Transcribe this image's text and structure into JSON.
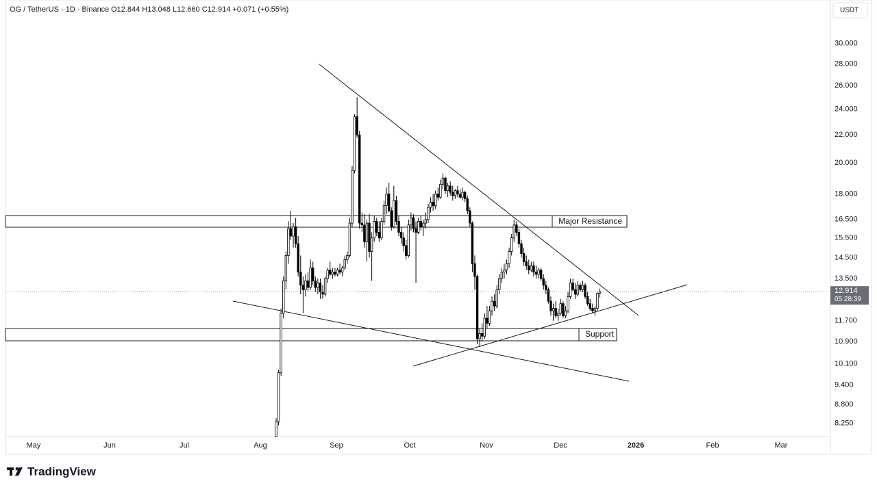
{
  "header": {
    "symbol": "OG / TetherUS · 1D · Binance",
    "ohlc": "O12.844 H13.048 L12.660 C12.914 +0.071 (+0.55%)"
  },
  "brand": "TradingView",
  "chart_data": {
    "type": "candlestick",
    "currency": "USDT",
    "log_scale": true,
    "grid": false,
    "up_color": "#ffffff",
    "down_color": "#000000",
    "wick_color": "#000000",
    "ylim": [
      7.89,
      34.8
    ],
    "yticks": [
      {
        "value": 30,
        "label": "30.000"
      },
      {
        "value": 28,
        "label": "28.000"
      },
      {
        "value": 26,
        "label": "26.000"
      },
      {
        "value": 24,
        "label": "24.000"
      },
      {
        "value": 22,
        "label": "22.000"
      },
      {
        "value": 20,
        "label": "20.000"
      },
      {
        "value": 18,
        "label": "18.000"
      },
      {
        "value": 16.5,
        "label": "16.500"
      },
      {
        "value": 15.5,
        "label": "15.500"
      },
      {
        "value": 14.5,
        "label": "14.500"
      },
      {
        "value": 13.5,
        "label": "13.500"
      },
      {
        "value": 11.7,
        "label": "11.700"
      },
      {
        "value": 10.9,
        "label": "10.900"
      },
      {
        "value": 10.1,
        "label": "10.100"
      },
      {
        "value": 9.4,
        "label": "9.400"
      },
      {
        "value": 8.8,
        "label": "8.800"
      },
      {
        "value": 8.25,
        "label": "8.250"
      }
    ],
    "months": [
      "May",
      "Jun",
      "Jul",
      "Aug",
      "Sep",
      "Oct",
      "Nov",
      "Dec",
      "2026",
      "Feb",
      "Mar"
    ],
    "last_price": {
      "label": "12.914",
      "countdown": "05:28:39"
    },
    "annotations": {
      "resistance": "Major Resistance",
      "support": "Support"
    },
    "candles": [
      [
        7.9,
        8.4,
        7.9,
        8.3
      ],
      [
        8.3,
        9.9,
        8.2,
        9.8
      ],
      [
        9.8,
        12.2,
        9.7,
        12.0
      ],
      [
        12.0,
        13.6,
        11.8,
        13.4
      ],
      [
        13.4,
        14.8,
        13.0,
        14.6
      ],
      [
        14.6,
        16.4,
        14.2,
        16.0
      ],
      [
        16.0,
        17.0,
        15.4,
        15.6
      ],
      [
        15.6,
        16.3,
        15.0,
        16.1
      ],
      [
        16.1,
        16.6,
        15.0,
        15.2
      ],
      [
        15.2,
        15.6,
        13.6,
        13.8
      ],
      [
        13.8,
        14.6,
        12.8,
        13.2
      ],
      [
        13.2,
        13.6,
        12.0,
        13.0
      ],
      [
        13.0,
        13.7,
        12.7,
        13.4
      ],
      [
        13.4,
        13.8,
        12.9,
        13.1
      ],
      [
        13.1,
        14.4,
        13.0,
        14.0
      ],
      [
        14.0,
        14.3,
        13.2,
        13.4
      ],
      [
        13.4,
        13.6,
        12.9,
        13.1
      ],
      [
        13.1,
        13.5,
        12.8,
        13.3
      ],
      [
        13.3,
        13.5,
        12.6,
        12.9
      ],
      [
        12.9,
        13.2,
        12.6,
        12.8
      ],
      [
        12.8,
        13.6,
        12.7,
        13.5
      ],
      [
        13.5,
        14.0,
        13.3,
        13.9
      ],
      [
        13.9,
        14.3,
        13.6,
        13.7
      ],
      [
        13.7,
        14.0,
        13.5,
        13.8
      ],
      [
        13.8,
        14.0,
        13.6,
        13.7
      ],
      [
        13.7,
        14.0,
        13.6,
        13.9
      ],
      [
        13.9,
        14.2,
        13.7,
        13.8
      ],
      [
        13.8,
        14.1,
        13.6,
        14.0
      ],
      [
        14.0,
        14.6,
        13.9,
        14.4
      ],
      [
        14.4,
        14.8,
        14.2,
        14.6
      ],
      [
        14.6,
        16.6,
        14.5,
        16.3
      ],
      [
        16.3,
        19.8,
        16.1,
        19.5
      ],
      [
        19.5,
        23.6,
        19.3,
        23.4
      ],
      [
        23.4,
        25.0,
        21.8,
        22.0
      ],
      [
        22.0,
        22.3,
        16.0,
        16.3
      ],
      [
        16.3,
        16.9,
        15.8,
        16.2
      ],
      [
        16.2,
        16.8,
        15.0,
        15.3
      ],
      [
        15.3,
        16.5,
        14.3,
        16.3
      ],
      [
        16.3,
        16.8,
        14.5,
        14.8
      ],
      [
        14.8,
        15.8,
        13.4,
        15.5
      ],
      [
        15.5,
        16.7,
        15.3,
        16.4
      ],
      [
        16.4,
        16.6,
        15.6,
        15.8
      ],
      [
        15.8,
        16.4,
        15.3,
        15.5
      ],
      [
        15.5,
        16.6,
        15.4,
        16.4
      ],
      [
        16.4,
        17.6,
        16.2,
        17.3
      ],
      [
        17.3,
        18.4,
        16.8,
        18.0
      ],
      [
        18.0,
        18.7,
        16.9,
        17.0
      ],
      [
        17.0,
        17.2,
        15.9,
        16.1
      ],
      [
        16.1,
        18.5,
        16.0,
        17.6
      ],
      [
        17.6,
        17.9,
        16.2,
        16.4
      ],
      [
        16.4,
        16.7,
        15.6,
        15.8
      ],
      [
        15.8,
        16.1,
        15.2,
        15.5
      ],
      [
        15.5,
        15.8,
        14.8,
        15.1
      ],
      [
        15.1,
        15.4,
        14.4,
        14.6
      ],
      [
        14.6,
        16.5,
        14.5,
        16.2
      ],
      [
        16.2,
        16.9,
        15.9,
        16.6
      ],
      [
        16.6,
        16.8,
        15.8,
        16.0
      ],
      [
        16.0,
        16.4,
        13.3,
        15.8
      ],
      [
        15.8,
        16.6,
        15.7,
        16.4
      ],
      [
        16.4,
        16.7,
        15.9,
        16.1
      ],
      [
        16.1,
        16.5,
        15.6,
        16.3
      ],
      [
        16.3,
        16.9,
        16.0,
        16.5
      ],
      [
        16.5,
        17.4,
        16.3,
        17.2
      ],
      [
        17.2,
        17.8,
        16.9,
        17.5
      ],
      [
        17.5,
        18.0,
        17.0,
        17.3
      ],
      [
        17.3,
        18.2,
        17.1,
        18.0
      ],
      [
        18.0,
        18.4,
        17.6,
        17.8
      ],
      [
        17.8,
        18.9,
        17.7,
        18.6
      ],
      [
        18.6,
        19.3,
        18.3,
        19.0
      ],
      [
        19.0,
        19.1,
        18.0,
        18.2
      ],
      [
        18.2,
        18.7,
        17.8,
        18.5
      ],
      [
        18.5,
        18.8,
        17.9,
        18.1
      ],
      [
        18.1,
        18.5,
        17.6,
        17.9
      ],
      [
        17.9,
        18.3,
        17.7,
        18.2
      ],
      [
        18.2,
        18.5,
        17.8,
        18.0
      ],
      [
        18.0,
        18.3,
        17.7,
        17.8
      ],
      [
        17.8,
        18.4,
        17.6,
        18.1
      ],
      [
        18.1,
        18.2,
        17.5,
        17.7
      ],
      [
        17.7,
        17.9,
        16.8,
        17.0
      ],
      [
        17.0,
        17.2,
        16.1,
        16.3
      ],
      [
        16.3,
        16.4,
        13.8,
        14.2
      ],
      [
        14.2,
        14.6,
        13.0,
        13.6
      ],
      [
        13.6,
        13.7,
        10.8,
        11.0
      ],
      [
        11.0,
        11.4,
        10.7,
        11.2
      ],
      [
        11.2,
        11.6,
        10.9,
        11.1
      ],
      [
        11.1,
        12.0,
        11.0,
        11.8
      ],
      [
        11.8,
        12.3,
        11.4,
        11.6
      ],
      [
        11.6,
        12.3,
        11.5,
        12.1
      ],
      [
        12.1,
        12.7,
        11.9,
        12.5
      ],
      [
        12.5,
        12.8,
        12.1,
        12.3
      ],
      [
        12.3,
        13.2,
        12.2,
        13.0
      ],
      [
        13.0,
        13.7,
        12.8,
        13.5
      ],
      [
        13.5,
        14.0,
        13.3,
        13.8
      ],
      [
        13.8,
        14.2,
        13.5,
        13.9
      ],
      [
        13.9,
        14.4,
        13.7,
        14.2
      ],
      [
        14.2,
        15.0,
        14.0,
        14.8
      ],
      [
        14.8,
        15.7,
        14.6,
        15.5
      ],
      [
        15.5,
        16.5,
        15.3,
        16.2
      ],
      [
        16.2,
        16.4,
        15.6,
        15.8
      ],
      [
        15.8,
        16.0,
        15.0,
        15.2
      ],
      [
        15.2,
        15.4,
        14.5,
        14.7
      ],
      [
        14.7,
        15.0,
        14.1,
        14.3
      ],
      [
        14.3,
        14.6,
        13.9,
        14.1
      ],
      [
        14.1,
        14.4,
        13.7,
        13.9
      ],
      [
        13.9,
        14.3,
        13.8,
        14.1
      ],
      [
        14.1,
        14.3,
        13.6,
        13.8
      ],
      [
        13.8,
        14.1,
        13.5,
        13.7
      ],
      [
        13.7,
        14.0,
        13.5,
        13.9
      ],
      [
        13.9,
        14.0,
        13.4,
        13.5
      ],
      [
        13.5,
        13.7,
        13.0,
        13.2
      ],
      [
        13.2,
        13.4,
        12.8,
        13.0
      ],
      [
        13.0,
        13.1,
        12.4,
        12.5
      ],
      [
        12.5,
        12.7,
        11.9,
        12.1
      ],
      [
        12.1,
        12.4,
        11.7,
        12.2
      ],
      [
        12.2,
        12.5,
        11.8,
        11.9
      ],
      [
        11.9,
        12.2,
        11.7,
        12.0
      ],
      [
        12.0,
        12.6,
        11.9,
        12.4
      ],
      [
        12.4,
        12.5,
        11.8,
        11.9
      ],
      [
        11.9,
        12.3,
        11.8,
        12.1
      ],
      [
        12.1,
        12.9,
        12.0,
        12.7
      ],
      [
        12.7,
        13.5,
        12.6,
        13.3
      ],
      [
        13.3,
        13.5,
        12.9,
        13.0
      ],
      [
        13.0,
        13.3,
        12.6,
        12.8
      ],
      [
        12.8,
        13.4,
        12.7,
        13.2
      ],
      [
        13.2,
        13.3,
        12.9,
        13.0
      ],
      [
        13.0,
        13.4,
        12.9,
        13.2
      ],
      [
        13.2,
        13.3,
        12.6,
        12.7
      ],
      [
        12.7,
        12.9,
        12.3,
        12.4
      ],
      [
        12.4,
        12.6,
        12.1,
        12.2
      ],
      [
        12.2,
        12.4,
        12.0,
        12.1
      ],
      [
        12.1,
        12.3,
        11.9,
        12.2
      ],
      [
        12.2,
        12.9,
        12.1,
        12.844
      ],
      [
        12.844,
        13.048,
        12.66,
        12.914
      ]
    ]
  }
}
